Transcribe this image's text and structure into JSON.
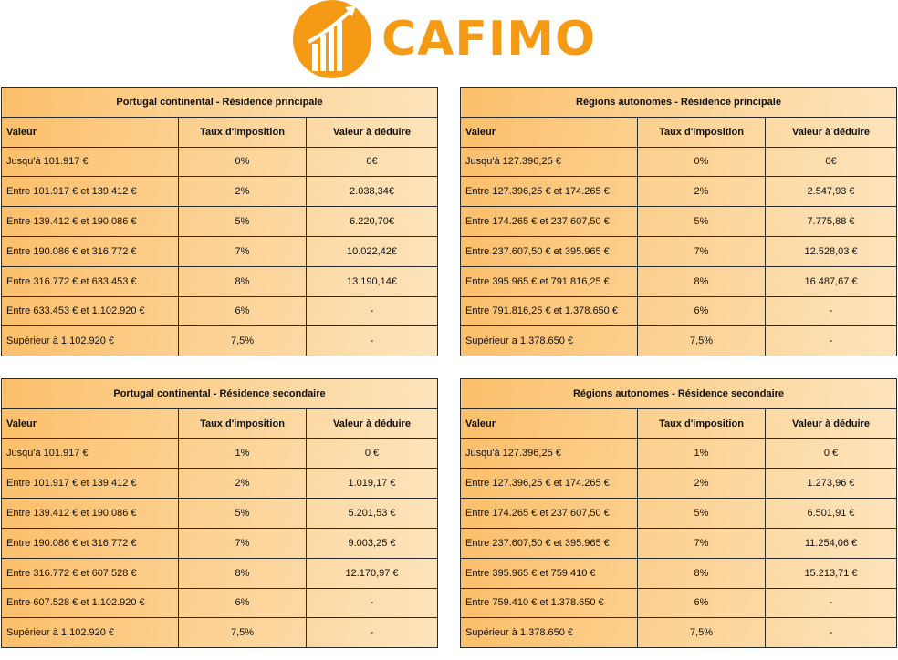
{
  "brand": {
    "name": "CAFIMO",
    "color": "#f59a14"
  },
  "columns": {
    "value": "Valeur",
    "rate": "Taux d'imposition",
    "deduct": "Valeur à déduire"
  },
  "tables": [
    {
      "title": "Portugal continental - Résidence principale",
      "rows": [
        [
          "Jusqu'à 101.917 €",
          "0%",
          "0€"
        ],
        [
          "Entre 101.917 € et 139.412 €",
          "2%",
          "2.038,34€"
        ],
        [
          "Entre 139.412 € et 190.086 €",
          "5%",
          "6.220,70€"
        ],
        [
          "Entre 190.086 € et 316.772 €",
          "7%",
          "10.022,42€"
        ],
        [
          "Entre 316.772 € et 633.453 €",
          "8%",
          "13.190,14€"
        ],
        [
          "Entre 633.453 € et 1.102.920 €",
          "6%",
          "-"
        ],
        [
          "Supérieur à 1.102.920 €",
          "7,5%",
          "-"
        ]
      ]
    },
    {
      "title": "Régions autonomes - Résidence principale",
      "rows": [
        [
          "Jusqu'à 127.396,25 €",
          "0%",
          "0€"
        ],
        [
          "Entre 127.396,25 € et 174.265 €",
          "2%",
          "2.547,93 €"
        ],
        [
          "Entre 174.265 € et 237.607,50 €",
          "5%",
          "7.775,88 €"
        ],
        [
          "Entre 237.607,50 € et 395.965 €",
          "7%",
          "12.528,03 €"
        ],
        [
          "Entre 395.965 € et 791.816,25 €",
          "8%",
          "16.487,67 €"
        ],
        [
          "Entre 791.816,25 € et 1.378.650 €",
          "6%",
          "-"
        ],
        [
          "Supérieur a 1.378.650 €",
          "7,5%",
          "-"
        ]
      ]
    },
    {
      "title": "Portugal continental - Résidence secondaire",
      "rows": [
        [
          "Jusqu'à 101.917 €",
          "1%",
          "0 €"
        ],
        [
          "Entre 101.917 € et 139.412 €",
          "2%",
          "1.019,17 €"
        ],
        [
          "Entre 139.412 € et 190.086 €",
          "5%",
          "5.201,53 €"
        ],
        [
          "Entre 190.086 € et 316.772 €",
          "7%",
          "9.003,25 €"
        ],
        [
          "Entre 316.772 € et 607.528 €",
          "8%",
          "12.170,97 €"
        ],
        [
          "Entre 607.528 € et 1.102.920 €",
          "6%",
          "-"
        ],
        [
          "Supérieur à 1.102.920 €",
          "7,5%",
          "-"
        ]
      ]
    },
    {
      "title": "Régions autonomes - Résidence secondaire",
      "rows": [
        [
          "Jusqu'à 127.396,25 €",
          "1%",
          "0 €"
        ],
        [
          "Entre 127.396,25 € et 174.265 €",
          "2%",
          "1.273,96 €"
        ],
        [
          "Entre 174.265 € et 237.607,50 €",
          "5%",
          "6.501,91 €"
        ],
        [
          "Entre 237.607,50 € et 395.965 €",
          "7%",
          "11.254,06 €"
        ],
        [
          "Entre 395.965 € et 759.410 €",
          "8%",
          "15.213,71 €"
        ],
        [
          "Entre 759.410 € et 1.378.650 €",
          "6%",
          "-"
        ],
        [
          "Supérieur à 1.378.650 €",
          "7,5%",
          "-"
        ]
      ]
    }
  ]
}
